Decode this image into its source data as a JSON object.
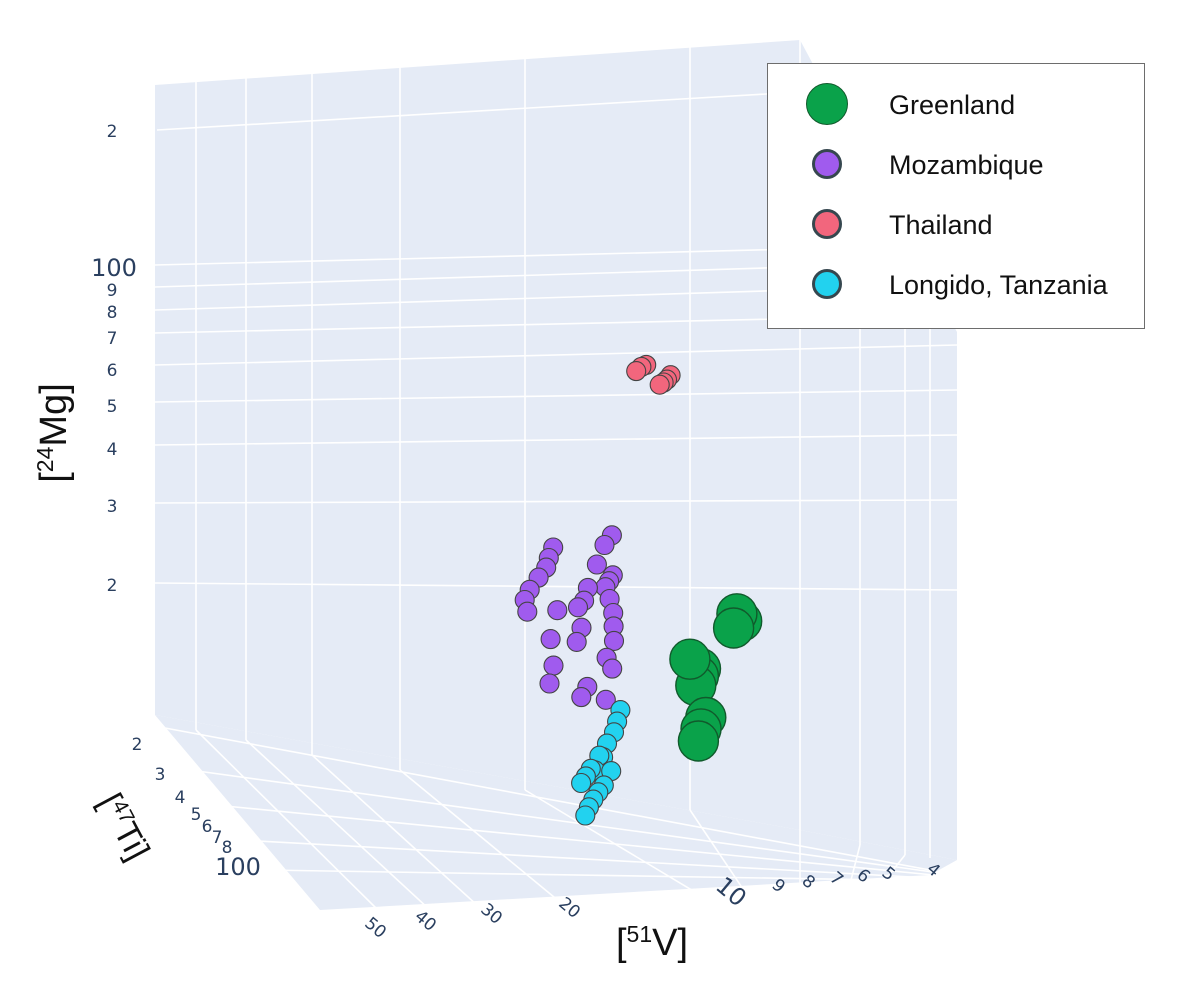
{
  "chart_data": {
    "type": "scatter3d",
    "title": "",
    "axes": {
      "x": {
        "label": "[51V]",
        "label_base": "[",
        "label_sup": "51",
        "label_elem": "V]",
        "scale": "log",
        "ticks": [
          "50",
          "40",
          "30",
          "20",
          "10",
          "9",
          "8",
          "7",
          "6",
          "5",
          "4"
        ]
      },
      "y": {
        "label": "[47Ti]",
        "label_base": "[",
        "label_sup": "47",
        "label_elem": "Ti]",
        "scale": "log",
        "ticks": [
          "2",
          "3",
          "4",
          "5",
          "6",
          "7",
          "8",
          "100"
        ]
      },
      "z": {
        "label": "[24Mg]",
        "label_base": "[",
        "label_sup": "24",
        "label_elem": "Mg]",
        "scale": "log",
        "ticks": [
          "2",
          "3",
          "4",
          "5",
          "6",
          "7",
          "8",
          "9",
          "100",
          "2"
        ]
      }
    },
    "legend": {
      "position": "top-right"
    },
    "series": [
      {
        "name": "Greenland",
        "color": "#0aa24a",
        "marker_size": "large",
        "points": [
          [
            55,
            3,
            3
          ],
          [
            52,
            3,
            3.1
          ],
          [
            50,
            3,
            2.9
          ],
          [
            34,
            2.9,
            2.4
          ],
          [
            33,
            3,
            2.3
          ],
          [
            32,
            3,
            2.2
          ],
          [
            30,
            2.9,
            2.5
          ],
          [
            36,
            3,
            1.9
          ],
          [
            34,
            3,
            1.8
          ],
          [
            33,
            3,
            1.7
          ]
        ]
      },
      {
        "name": "Mozambique",
        "color": "#a05bee",
        "marker_size": "small",
        "points": [
          [
            12,
            2.8,
            4.4
          ],
          [
            11,
            2.8,
            4.2
          ],
          [
            10,
            2.9,
            3.8
          ],
          [
            12,
            3,
            3.6
          ],
          [
            11.5,
            3,
            3.5
          ],
          [
            11,
            3,
            3.4
          ],
          [
            11.5,
            3.1,
            3.2
          ],
          [
            12,
            3.1,
            3
          ],
          [
            12,
            3.2,
            2.8
          ],
          [
            12,
            3.3,
            2.6
          ],
          [
            11,
            3.3,
            2.4
          ],
          [
            11.8,
            3.2,
            2.3
          ],
          [
            11,
            3.1,
            2
          ],
          [
            9,
            2.9,
            3.4
          ],
          [
            8.6,
            2.9,
            3.2
          ],
          [
            8,
            2.9,
            3.1
          ],
          [
            8.3,
            3,
            2.8
          ],
          [
            7.8,
            3.1,
            2.6
          ],
          [
            8.8,
            3.2,
            2.1
          ],
          [
            8.2,
            3.2,
            2
          ],
          [
            6,
            2.8,
            4.1
          ],
          [
            5.7,
            2.8,
            3.9
          ],
          [
            5.5,
            2.9,
            3.7
          ],
          [
            5,
            3,
            3.5
          ],
          [
            4.5,
            3,
            3.3
          ],
          [
            4.2,
            3.2,
            3.1
          ],
          [
            6.2,
            3.1,
            3
          ],
          [
            5.7,
            3.2,
            2.6
          ],
          [
            5.9,
            3.2,
            2.3
          ],
          [
            5.6,
            3.3,
            2.1
          ],
          [
            4.4,
            2.9,
            3
          ]
        ]
      },
      {
        "name": "Thailand",
        "color": "#f2667d",
        "marker_size": "small",
        "points": [
          [
            24,
            2.8,
            9.4
          ],
          [
            23,
            2.8,
            9.2
          ],
          [
            22,
            2.9,
            9
          ],
          [
            21,
            2.9,
            8.9
          ],
          [
            18,
            2.8,
            9.8
          ],
          [
            17,
            2.8,
            9.7
          ],
          [
            16,
            2.8,
            9.5
          ],
          [
            8,
            2.7,
            100
          ],
          [
            7.8,
            2.7,
            100
          ]
        ]
      },
      {
        "name": "Longido, Tanzania",
        "color": "#22d2ef",
        "marker_size": "small",
        "points": [
          [
            13,
            3.2,
            1.9
          ],
          [
            12.5,
            3.2,
            1.8
          ],
          [
            12,
            3.3,
            1.7
          ],
          [
            11,
            3.4,
            1.6
          ],
          [
            10.5,
            3.4,
            1.5
          ],
          [
            10,
            3.5,
            1.5
          ],
          [
            9.5,
            3.5,
            1.4
          ],
          [
            9,
            3.6,
            1.4
          ],
          [
            8.5,
            3.6,
            1.35
          ],
          [
            8,
            3.7,
            1.3
          ],
          [
            11.5,
            3.5,
            1.4
          ],
          [
            10.5,
            3.6,
            1.3
          ],
          [
            9.8,
            3.7,
            1.25
          ],
          [
            9.2,
            3.8,
            1.2
          ],
          [
            8.7,
            3.9,
            1.15
          ],
          [
            8.3,
            4,
            1.1
          ]
        ]
      }
    ]
  }
}
